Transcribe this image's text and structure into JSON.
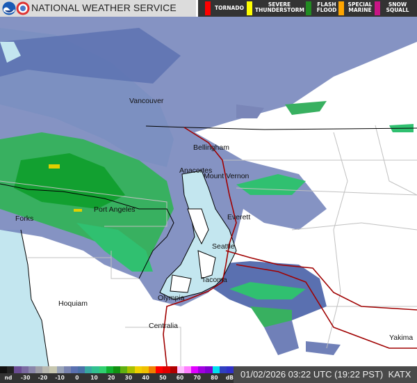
{
  "header": {
    "title": "NATIONAL WEATHER SERVICE",
    "warnings": [
      {
        "label": "TORNADO",
        "color": "#ff0000"
      },
      {
        "label": "SEVERE THUNDERSTORM",
        "color": "#ffff00"
      },
      {
        "label": "FLASH FLOOD",
        "color": "#228b22"
      },
      {
        "label": "SPECIAL MARINE",
        "color": "#ffa500"
      },
      {
        "label": "SNOW SQUALL",
        "color": "#c71585"
      }
    ]
  },
  "map": {
    "water_color": "#c3e6ef",
    "state_line_color": "#000000",
    "highway_color": "#a00000",
    "cities": [
      "Vancouver",
      "Bellingham",
      "Anacortes",
      "Mount Vernon",
      "Everett",
      "Seattle",
      "Tacoma",
      "Olympia",
      "Centralia",
      "Hoquiam",
      "Forks",
      "Port Angeles",
      "Yakima"
    ]
  },
  "footer": {
    "scale_labels": [
      "nd",
      "-30",
      "-20",
      "-10",
      "0",
      "10",
      "20",
      "30",
      "40",
      "50",
      "60",
      "70",
      "80",
      "dBZ"
    ],
    "scale_colors": [
      "#111111",
      "#222222",
      "#6a4c93",
      "#7a6aa0",
      "#8a86aa",
      "#a0a0a8",
      "#b8b8b0",
      "#c8c8b0",
      "#9aa4b8",
      "#7a84b0",
      "#5a70b0",
      "#4a70a8",
      "#38a8a0",
      "#30c090",
      "#30d070",
      "#10b030",
      "#109010",
      "#60b010",
      "#a8c000",
      "#f0d000",
      "#f0c000",
      "#f08000",
      "#ff0000",
      "#e00000",
      "#b00000",
      "#ffc0ff",
      "#ff80ff",
      "#e000ff",
      "#a000e0",
      "#8000d0",
      "#00e0f0",
      "#3040c0",
      "#3030c8"
    ],
    "timestamp": "01/02/2026 03:22 UTC (19:22 PST)",
    "station": "KATX"
  }
}
